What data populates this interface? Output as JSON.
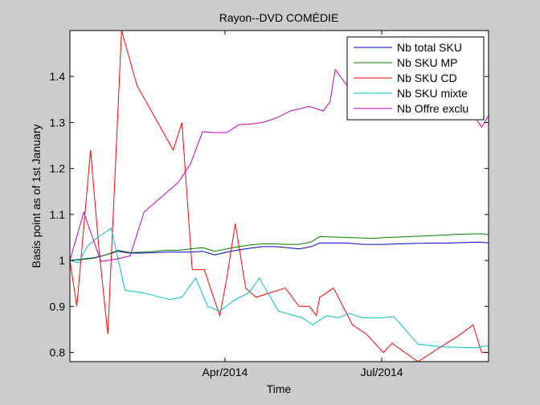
{
  "chart_data": {
    "type": "line",
    "title": "Rayon--DVD COMÉDIE",
    "xlabel": "Time",
    "ylabel": "Basis point as of 1st January",
    "x_axis": {
      "type": "date",
      "start": "2014-01-01",
      "end": "2014-09-01"
    },
    "x_ticks": [
      {
        "date": "2014-04-01",
        "label": "Apr/2014"
      },
      {
        "date": "2014-07-01",
        "label": "Jul/2014"
      }
    ],
    "ylim": [
      0.78,
      1.5
    ],
    "y_ticks": [
      0.8,
      0.9,
      1.0,
      1.1,
      1.2,
      1.3,
      1.4
    ],
    "y_tick_labels": [
      "0.8",
      "0.9",
      "1",
      "1.1",
      "1.2",
      "1.3",
      "1.4"
    ],
    "grid": false,
    "legend_position": "top-right",
    "series": [
      {
        "name": "Nb total SKU",
        "color": "#0000bf",
        "points": [
          [
            "2014-01-01",
            1.0
          ],
          [
            "2014-01-08",
            1.003
          ],
          [
            "2014-01-15",
            1.006
          ],
          [
            "2014-01-22",
            1.012
          ],
          [
            "2014-01-29",
            1.02
          ],
          [
            "2014-02-05",
            1.016
          ],
          [
            "2014-02-12",
            1.016
          ],
          [
            "2014-02-19",
            1.017
          ],
          [
            "2014-02-26",
            1.018
          ],
          [
            "2014-03-05",
            1.018
          ],
          [
            "2014-03-12",
            1.018
          ],
          [
            "2014-03-19",
            1.02
          ],
          [
            "2014-03-26",
            1.012
          ],
          [
            "2014-04-02",
            1.018
          ],
          [
            "2014-04-09",
            1.023
          ],
          [
            "2014-04-16",
            1.027
          ],
          [
            "2014-04-23",
            1.03
          ],
          [
            "2014-04-30",
            1.03
          ],
          [
            "2014-05-07",
            1.028
          ],
          [
            "2014-05-14",
            1.025
          ],
          [
            "2014-05-21",
            1.03
          ],
          [
            "2014-05-26",
            1.038
          ],
          [
            "2014-06-10",
            1.038
          ],
          [
            "2014-06-20",
            1.035
          ],
          [
            "2014-07-01",
            1.035
          ],
          [
            "2014-07-20",
            1.037
          ],
          [
            "2014-08-10",
            1.038
          ],
          [
            "2014-08-27",
            1.04
          ],
          [
            "2014-09-01",
            1.038
          ]
        ]
      },
      {
        "name": "Nb SKU MP",
        "color": "#007f00",
        "points": [
          [
            "2014-01-01",
            1.0
          ],
          [
            "2014-01-08",
            1.002
          ],
          [
            "2014-01-15",
            1.005
          ],
          [
            "2014-01-22",
            1.012
          ],
          [
            "2014-01-29",
            1.022
          ],
          [
            "2014-02-05",
            1.017
          ],
          [
            "2014-02-12",
            1.018
          ],
          [
            "2014-02-19",
            1.02
          ],
          [
            "2014-02-26",
            1.022
          ],
          [
            "2014-03-05",
            1.022
          ],
          [
            "2014-03-12",
            1.025
          ],
          [
            "2014-03-19",
            1.028
          ],
          [
            "2014-03-26",
            1.02
          ],
          [
            "2014-04-02",
            1.025
          ],
          [
            "2014-04-09",
            1.03
          ],
          [
            "2014-04-16",
            1.034
          ],
          [
            "2014-04-23",
            1.036
          ],
          [
            "2014-04-30",
            1.036
          ],
          [
            "2014-05-07",
            1.035
          ],
          [
            "2014-05-14",
            1.035
          ],
          [
            "2014-05-21",
            1.04
          ],
          [
            "2014-05-26",
            1.052
          ],
          [
            "2014-06-10",
            1.05
          ],
          [
            "2014-06-25",
            1.048
          ],
          [
            "2014-07-05",
            1.05
          ],
          [
            "2014-07-25",
            1.053
          ],
          [
            "2014-08-15",
            1.057
          ],
          [
            "2014-08-28",
            1.058
          ],
          [
            "2014-09-01",
            1.056
          ]
        ]
      },
      {
        "name": "Nb SKU CD",
        "color": "#ff0000",
        "points": [
          [
            "2014-01-01",
            1.0
          ],
          [
            "2014-01-05",
            0.9
          ],
          [
            "2014-01-13",
            1.24
          ],
          [
            "2014-01-18",
            1.02
          ],
          [
            "2014-01-23",
            0.84
          ],
          [
            "2014-01-31",
            1.5
          ],
          [
            "2014-02-09",
            1.38
          ],
          [
            "2014-03-02",
            1.24
          ],
          [
            "2014-03-07",
            1.3
          ],
          [
            "2014-03-13",
            0.98
          ],
          [
            "2014-03-20",
            0.98
          ],
          [
            "2014-03-29",
            0.88
          ],
          [
            "2014-04-02",
            0.96
          ],
          [
            "2014-04-07",
            1.08
          ],
          [
            "2014-04-13",
            0.94
          ],
          [
            "2014-04-19",
            0.92
          ],
          [
            "2014-05-06",
            0.94
          ],
          [
            "2014-05-14",
            0.9
          ],
          [
            "2014-05-20",
            0.9
          ],
          [
            "2014-05-24",
            0.88
          ],
          [
            "2014-05-26",
            0.92
          ],
          [
            "2014-06-03",
            0.94
          ],
          [
            "2014-06-14",
            0.86
          ],
          [
            "2014-06-22",
            0.84
          ],
          [
            "2014-07-02",
            0.8
          ],
          [
            "2014-07-07",
            0.82
          ],
          [
            "2014-07-22",
            0.78
          ],
          [
            "2014-08-16",
            0.84
          ],
          [
            "2014-08-23",
            0.86
          ],
          [
            "2014-08-28",
            0.8
          ],
          [
            "2014-09-01",
            0.8
          ]
        ]
      },
      {
        "name": "Nb SKU mixte",
        "color": "#00bfbf",
        "points": [
          [
            "2014-01-01",
            1.0
          ],
          [
            "2014-01-06",
            0.995
          ],
          [
            "2014-01-11",
            1.03
          ],
          [
            "2014-01-17",
            1.05
          ],
          [
            "2014-01-25",
            1.07
          ],
          [
            "2014-02-02",
            0.935
          ],
          [
            "2014-02-12",
            0.93
          ],
          [
            "2014-02-28",
            0.915
          ],
          [
            "2014-03-07",
            0.92
          ],
          [
            "2014-03-15",
            0.962
          ],
          [
            "2014-03-22",
            0.9
          ],
          [
            "2014-03-29",
            0.89
          ],
          [
            "2014-04-07",
            0.915
          ],
          [
            "2014-04-15",
            0.93
          ],
          [
            "2014-04-21",
            0.962
          ],
          [
            "2014-05-02",
            0.89
          ],
          [
            "2014-05-16",
            0.875
          ],
          [
            "2014-05-22",
            0.86
          ],
          [
            "2014-05-30",
            0.88
          ],
          [
            "2014-06-06",
            0.875
          ],
          [
            "2014-06-12",
            0.885
          ],
          [
            "2014-06-20",
            0.875
          ],
          [
            "2014-07-01",
            0.875
          ],
          [
            "2014-07-08",
            0.878
          ],
          [
            "2014-07-22",
            0.818
          ],
          [
            "2014-08-05",
            0.812
          ],
          [
            "2014-08-25",
            0.81
          ],
          [
            "2014-09-01",
            0.815
          ]
        ]
      },
      {
        "name": "Nb Offre exclu",
        "color": "#bf00bf",
        "points": [
          [
            "2014-01-01",
            1.0
          ],
          [
            "2014-01-09",
            1.105
          ],
          [
            "2014-01-19",
            0.998
          ],
          [
            "2014-01-28",
            1.003
          ],
          [
            "2014-02-05",
            1.01
          ],
          [
            "2014-02-13",
            1.105
          ],
          [
            "2014-03-05",
            1.17
          ],
          [
            "2014-03-12",
            1.21
          ],
          [
            "2014-03-19",
            1.28
          ],
          [
            "2014-03-26",
            1.278
          ],
          [
            "2014-04-02",
            1.278
          ],
          [
            "2014-04-09",
            1.295
          ],
          [
            "2014-04-16",
            1.297
          ],
          [
            "2014-04-23",
            1.3
          ],
          [
            "2014-05-01",
            1.31
          ],
          [
            "2014-05-09",
            1.325
          ],
          [
            "2014-05-20",
            1.335
          ],
          [
            "2014-05-28",
            1.325
          ],
          [
            "2014-06-01",
            1.345
          ],
          [
            "2014-06-04",
            1.415
          ],
          [
            "2014-06-12",
            1.375
          ],
          [
            "2014-06-22",
            1.39
          ],
          [
            "2014-07-06",
            1.385
          ],
          [
            "2014-07-24",
            1.38
          ],
          [
            "2014-08-12",
            1.38
          ],
          [
            "2014-08-28",
            1.29
          ],
          [
            "2014-09-01",
            1.315
          ]
        ]
      }
    ]
  }
}
